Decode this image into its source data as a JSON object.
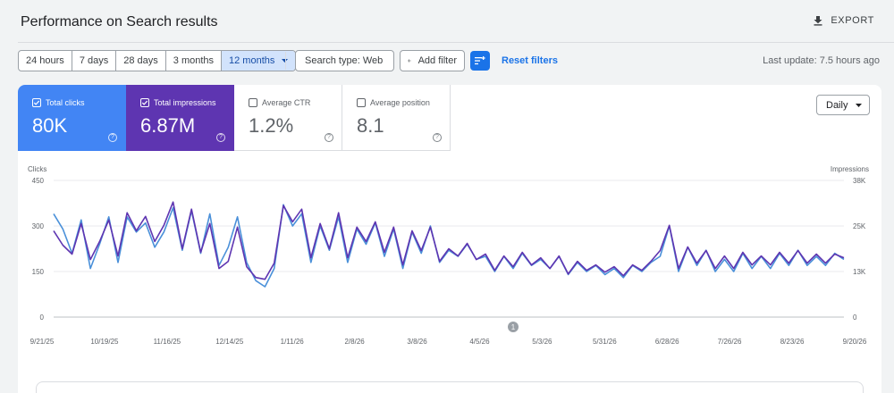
{
  "header": {
    "title": "Performance on Search results",
    "export_label": "EXPORT"
  },
  "filters": {
    "ranges": [
      "24 hours",
      "7 days",
      "28 days",
      "3 months",
      "12 months"
    ],
    "active_range": "12 months",
    "search_type": "Search type: Web",
    "add_filter": "Add filter",
    "reset": "Reset filters",
    "last_update": "Last update: 7.5 hours ago"
  },
  "metrics": [
    {
      "label": "Total clicks",
      "value": "80K",
      "checked": true,
      "color": "#4285f4"
    },
    {
      "label": "Total impressions",
      "value": "6.87M",
      "checked": true,
      "color": "#5e35b1"
    },
    {
      "label": "Average CTR",
      "value": "1.2%",
      "checked": false
    },
    {
      "label": "Average position",
      "value": "8.1",
      "checked": false
    }
  ],
  "granularity": "Daily",
  "chart_data": {
    "type": "line",
    "xlabel": "",
    "left_axis_title": "Clicks",
    "right_axis_title": "Impressions",
    "left_ticks": [
      "450",
      "300",
      "150",
      "0"
    ],
    "left_range": [
      0,
      450
    ],
    "right_ticks": [
      "38K",
      "25K",
      "13K",
      "0"
    ],
    "right_range": [
      0,
      38000
    ],
    "x_ticks": [
      "9/21/25",
      "10/19/25",
      "11/16/25",
      "12/14/25",
      "1/11/26",
      "2/8/26",
      "3/8/26",
      "4/5/26",
      "5/3/26",
      "5/31/26",
      "6/28/26",
      "7/26/26",
      "8/23/26",
      "9/20/26"
    ],
    "annotation": "1",
    "grid": true,
    "legend": "none",
    "series": [
      {
        "name": "Clicks",
        "axis": "left",
        "color": "#4a90d9",
        "values": [
          340,
          290,
          210,
          320,
          160,
          240,
          330,
          180,
          330,
          280,
          310,
          230,
          280,
          360,
          220,
          350,
          210,
          340,
          170,
          230,
          330,
          180,
          120,
          100,
          160,
          370,
          300,
          340,
          180,
          300,
          220,
          330,
          180,
          290,
          240,
          310,
          200,
          290,
          160,
          280,
          210,
          300,
          180,
          220,
          200,
          240,
          190,
          200,
          150,
          200,
          160,
          210,
          170,
          190,
          160,
          200,
          140,
          180,
          150,
          170,
          140,
          160,
          130,
          170,
          150,
          180,
          200,
          300,
          150,
          230,
          170,
          220,
          150,
          190,
          150,
          210,
          160,
          200,
          160,
          210,
          170,
          220,
          170,
          200,
          170,
          210,
          190
        ]
      },
      {
        "name": "Impressions",
        "axis": "right",
        "color": "#5e35b1",
        "values": [
          24000,
          20000,
          17500,
          26000,
          16000,
          21000,
          27000,
          17000,
          29000,
          24000,
          28000,
          21000,
          25500,
          32000,
          19000,
          30000,
          18000,
          26000,
          13500,
          15500,
          25000,
          14000,
          11000,
          10500,
          15000,
          31000,
          26500,
          30000,
          16500,
          26000,
          19000,
          29000,
          16500,
          25000,
          21000,
          26500,
          18000,
          25000,
          14500,
          24000,
          18500,
          25000,
          15500,
          19000,
          17000,
          20500,
          16000,
          17500,
          13000,
          17000,
          14000,
          18000,
          14500,
          16500,
          13500,
          17000,
          12000,
          15500,
          13000,
          14500,
          12500,
          14000,
          11500,
          14500,
          13000,
          15500,
          18500,
          25500,
          13500,
          19500,
          15000,
          18500,
          13500,
          17000,
          13500,
          18000,
          14500,
          17000,
          14500,
          18000,
          15000,
          18500,
          15000,
          17500,
          15000,
          17500,
          16500
        ]
      }
    ]
  },
  "icons": {
    "download": "download-icon",
    "dropdown": "chevron-down-icon",
    "plus": "plus-icon",
    "filter": "filter-settings-icon",
    "help": "help-icon",
    "checkbox": "checkbox-icon"
  }
}
